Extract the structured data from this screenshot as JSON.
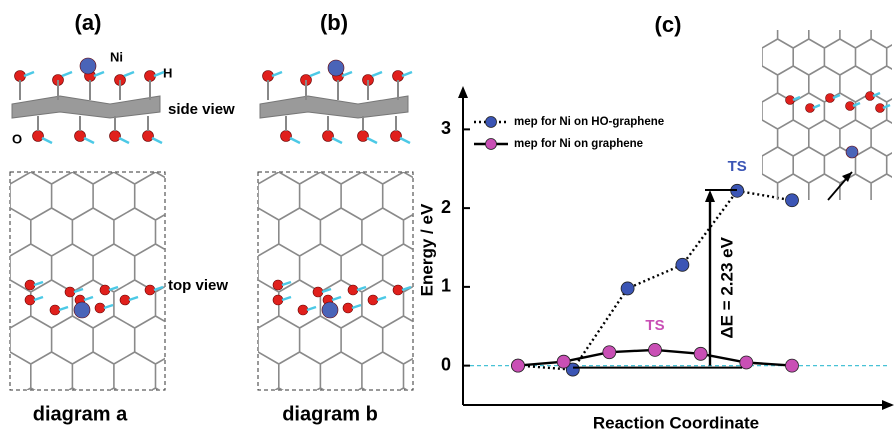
{
  "panel_a": {
    "label": "(a)",
    "atom_label": "Ni",
    "h_label": "H",
    "o_label": "O",
    "side_view": "side view",
    "top_view": "top view",
    "caption": "diagram a"
  },
  "panel_b": {
    "label": "(b)",
    "caption": "diagram b"
  },
  "chart_data": {
    "type": "line",
    "panel_label": "(c)",
    "x_label": "Reaction Coordinate",
    "y_label": "Energy / eV",
    "ylim": [
      -0.5,
      3.5
    ],
    "yticks": [
      0,
      1,
      2,
      3
    ],
    "series": [
      {
        "name": "mep for Ni on HO-graphene",
        "color": "#3b55b5",
        "values": [
          0,
          -0.05,
          0.98,
          1.28,
          2.22,
          2.1
        ],
        "ts_label": "TS"
      },
      {
        "name": "mep for Ni on graphene",
        "color": "#c94fb5",
        "values": [
          0,
          0.05,
          0.17,
          0.2,
          0.15,
          0.04,
          0
        ],
        "ts_label": "TS"
      }
    ],
    "delta_e": {
      "value": 2.23,
      "label": "ΔE = 2.23 eV"
    }
  }
}
